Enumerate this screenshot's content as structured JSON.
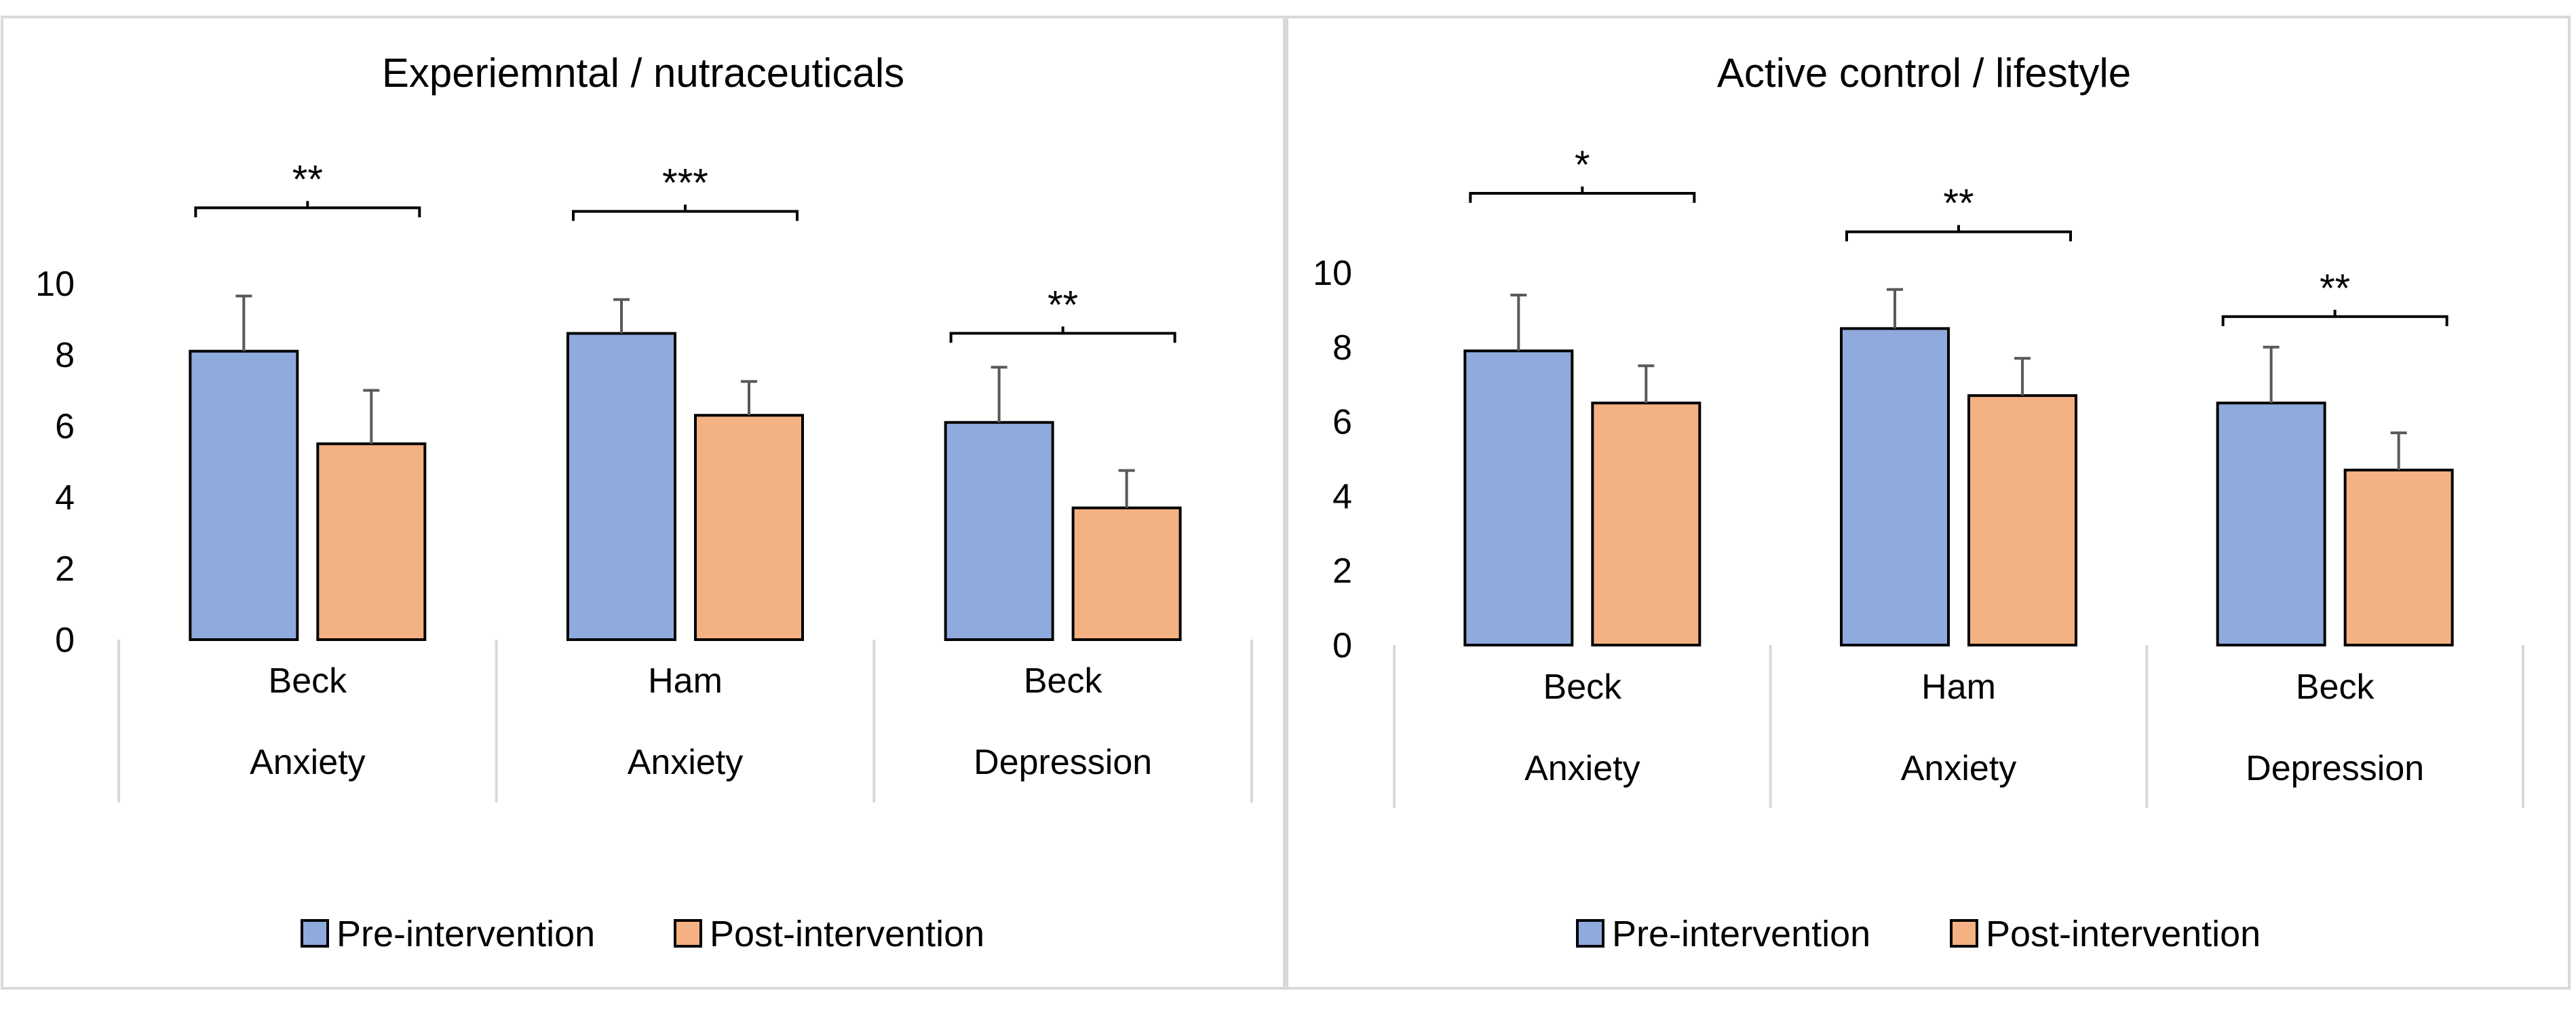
{
  "series_names": [
    "Pre-intervention",
    "Post-intervention"
  ],
  "series_colors": [
    "#8faadc",
    "#f4b183"
  ],
  "chart_data": [
    {
      "type": "bar",
      "title": "Experiemntal / nutraceuticals",
      "categories": [
        [
          "Beck",
          "Anxiety"
        ],
        [
          "Ham",
          "Anxiety"
        ],
        [
          "Beck",
          "Depression"
        ]
      ],
      "yticks": [
        0,
        2,
        4,
        6,
        8,
        10
      ],
      "ylim": [
        0,
        10
      ],
      "series": [
        {
          "name": "Pre-intervention",
          "values": [
            8.1,
            8.6,
            6.1
          ],
          "errors": [
            1.55,
            0.95,
            1.55
          ]
        },
        {
          "name": "Post-intervention",
          "values": [
            5.5,
            6.3,
            3.7
          ],
          "errors": [
            1.5,
            0.95,
            1.05
          ]
        }
      ],
      "significance": [
        "**",
        "***",
        "**"
      ],
      "legend": [
        "Pre-intervention",
        "Post-intervention"
      ]
    },
    {
      "type": "bar",
      "title": "Active control / lifestyle",
      "categories": [
        [
          "Beck",
          "Anxiety"
        ],
        [
          "Ham",
          "Anxiety"
        ],
        [
          "Beck",
          "Depression"
        ]
      ],
      "yticks": [
        0,
        2,
        4,
        6,
        8,
        10
      ],
      "ylim": [
        0,
        10
      ],
      "series": [
        {
          "name": "Pre-intervention",
          "values": [
            7.9,
            8.5,
            6.5
          ],
          "errors": [
            1.5,
            1.05,
            1.5
          ]
        },
        {
          "name": "Post-intervention",
          "values": [
            6.5,
            6.7,
            4.7
          ],
          "errors": [
            1.0,
            1.0,
            1.0
          ]
        }
      ],
      "significance": [
        "*",
        "**",
        "**"
      ],
      "legend": [
        "Pre-intervention",
        "Post-intervention"
      ]
    }
  ]
}
